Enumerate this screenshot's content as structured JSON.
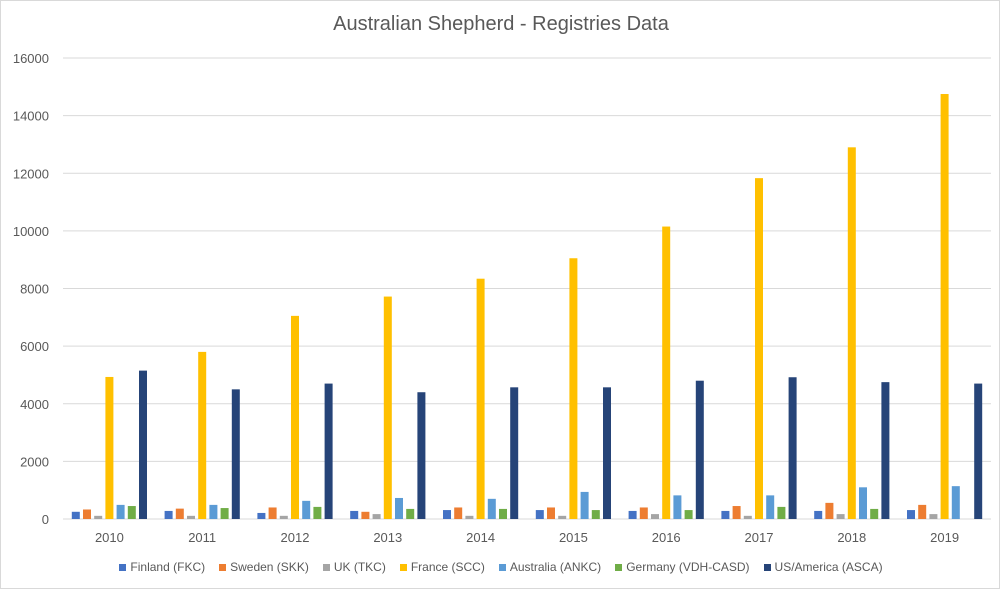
{
  "chart_data": {
    "type": "bar",
    "title": "Australian Shepherd - Registries Data",
    "xlabel": "",
    "ylabel": "",
    "ylim": [
      0,
      16000
    ],
    "yticks": [
      0,
      2000,
      4000,
      6000,
      8000,
      10000,
      12000,
      14000,
      16000
    ],
    "grid": true,
    "legend_position": "bottom",
    "categories": [
      "2010",
      "2011",
      "2012",
      "2013",
      "2014",
      "2015",
      "2016",
      "2017",
      "2018",
      "2019"
    ],
    "series": [
      {
        "name": "Finland (FKC)",
        "color": "#4472c4",
        "values": [
          250,
          280,
          210,
          280,
          310,
          310,
          280,
          280,
          280,
          310
        ]
      },
      {
        "name": "Sweden (SKK)",
        "color": "#ed7d31",
        "values": [
          330,
          360,
          400,
          250,
          400,
          400,
          400,
          450,
          560,
          490
        ]
      },
      {
        "name": "UK (TKC)",
        "color": "#a5a5a5",
        "values": [
          110,
          110,
          110,
          170,
          110,
          110,
          170,
          110,
          170,
          170
        ]
      },
      {
        "name": "France (SCC)",
        "color": "#ffc000",
        "values": [
          4930,
          5800,
          7050,
          7720,
          8340,
          9050,
          10150,
          11830,
          12900,
          14750
        ]
      },
      {
        "name": "Australia (ANKC)",
        "color": "#5b9bd5",
        "values": [
          490,
          490,
          630,
          730,
          700,
          940,
          820,
          820,
          1100,
          1140
        ]
      },
      {
        "name": "Germany (VDH-CASD)",
        "color": "#70ad47",
        "values": [
          450,
          380,
          420,
          350,
          350,
          310,
          310,
          420,
          350,
          0
        ]
      },
      {
        "name": "US/America (ASCA)",
        "color": "#264478",
        "values": [
          5150,
          4500,
          4700,
          4400,
          4570,
          4570,
          4800,
          4920,
          4750,
          4700
        ]
      }
    ]
  }
}
